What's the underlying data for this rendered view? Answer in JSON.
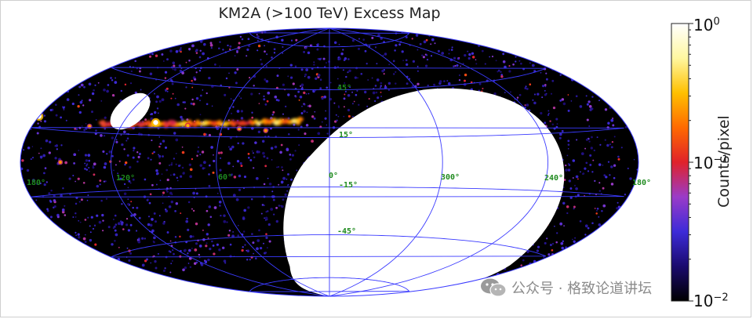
{
  "chart_data": {
    "type": "heatmap",
    "projection": "aitoff (equatorial, ra 180° at both edges)",
    "title": "KM2A (>100 TeV) Excess Map",
    "colorbar": {
      "label": "Counts/pixel",
      "scale": "log",
      "range": [
        0.01,
        1
      ],
      "ticks": [
        {
          "value": 1,
          "base": "10",
          "exp": "0"
        },
        {
          "value": 0.1,
          "base": "10",
          "exp": "−1"
        },
        {
          "value": 0.01,
          "base": "10",
          "exp": "−2"
        }
      ],
      "colormap": [
        "#000000",
        "#1a0a6e",
        "#3d2bd8",
        "#9a3bc8",
        "#e0222a",
        "#ff6a00",
        "#ffc000",
        "#fff7a0",
        "#ffffff"
      ]
    },
    "meridian_labels": [
      "180°",
      "120°",
      "60°",
      "0°",
      "300°",
      "240°",
      "180°"
    ],
    "parallel_labels": [
      "45°",
      "15°",
      "-15°",
      "-45°"
    ],
    "grid_color": "#3a3aff",
    "label_color": "#1e8a1e",
    "galactic_plane_hotspots_ra": [
      120,
      100,
      84,
      72,
      60,
      40,
      30,
      20
    ],
    "notable_sources": [
      {
        "ra": 100,
        "dec": 22,
        "intensity": 1.0
      },
      {
        "ra": 180,
        "dec": 20,
        "intensity": 1.0
      },
      {
        "ra": 115,
        "dec": 20,
        "intensity": 0.5
      },
      {
        "ra": 80,
        "dec": 21,
        "intensity": 0.4
      },
      {
        "ra": 50,
        "dec": 20,
        "intensity": 0.35
      },
      {
        "ra": 35,
        "dec": 19,
        "intensity": 0.3
      },
      {
        "ra": 140,
        "dec": 18,
        "intensity": 0.3
      },
      {
        "ra": 152,
        "dec": 0,
        "intensity": 0.3
      }
    ]
  },
  "watermark": {
    "text": "公众号 · 格致论道讲坛",
    "icon": "wechat-icon"
  }
}
